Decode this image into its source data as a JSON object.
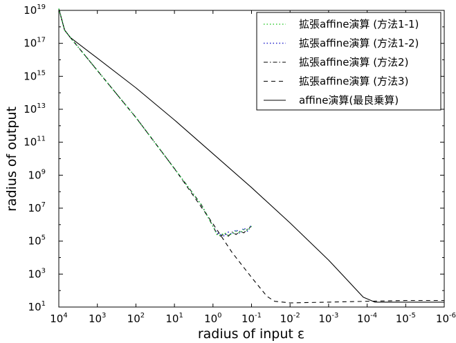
{
  "chart_data": {
    "type": "line",
    "title": "",
    "xlabel": "radius of input ε",
    "ylabel": "radius of output",
    "x_scale": "log",
    "y_scale": "log",
    "x_reversed": true,
    "grid": false,
    "legend_position": "top-right",
    "xlim": [
      10000,
      1e-06
    ],
    "ylim": [
      10,
      10000000000000000000
    ],
    "x_ticks": [
      {
        "base": "10",
        "exp": "4"
      },
      {
        "base": "10",
        "exp": "3"
      },
      {
        "base": "10",
        "exp": "2"
      },
      {
        "base": "10",
        "exp": "1"
      },
      {
        "base": "10",
        "exp": "0"
      },
      {
        "base": "10",
        "exp": "-1"
      },
      {
        "base": "10",
        "exp": "-2"
      },
      {
        "base": "10",
        "exp": "-3"
      },
      {
        "base": "10",
        "exp": "-4"
      },
      {
        "base": "10",
        "exp": "-5"
      },
      {
        "base": "10",
        "exp": "-6"
      }
    ],
    "y_ticks": [
      {
        "base": "10",
        "exp": "1"
      },
      {
        "base": "10",
        "exp": "3"
      },
      {
        "base": "10",
        "exp": "5"
      },
      {
        "base": "10",
        "exp": "7"
      },
      {
        "base": "10",
        "exp": "9"
      },
      {
        "base": "10",
        "exp": "11"
      },
      {
        "base": "10",
        "exp": "13"
      },
      {
        "base": "10",
        "exp": "15"
      },
      {
        "base": "10",
        "exp": "17"
      },
      {
        "base": "10",
        "exp": "19"
      }
    ],
    "series": [
      {
        "name": "拡張affine演算 (方法1-1)",
        "color": "#33cc33",
        "style": "dotted",
        "log10_points": [
          [
            4.0,
            19.1
          ],
          [
            3.85,
            17.8
          ],
          [
            3.7,
            17.35
          ],
          [
            3.0,
            15.35
          ],
          [
            2.0,
            12.5
          ],
          [
            1.0,
            9.4
          ],
          [
            0.3,
            7.2
          ],
          [
            0.0,
            5.9
          ],
          [
            -0.1,
            5.4
          ],
          [
            -0.2,
            5.35
          ],
          [
            -0.3,
            5.5
          ],
          [
            -0.4,
            5.35
          ],
          [
            -0.5,
            5.45
          ],
          [
            -0.6,
            5.6
          ],
          [
            -0.7,
            5.5
          ],
          [
            -0.8,
            5.7
          ],
          [
            -0.9,
            5.65
          ],
          [
            -1.0,
            5.9
          ]
        ]
      },
      {
        "name": "拡張affine演算 (方法1-2)",
        "color": "#2222cc",
        "style": "dotted",
        "log10_points": [
          [
            4.0,
            19.1
          ],
          [
            3.85,
            17.8
          ],
          [
            3.7,
            17.35
          ],
          [
            3.0,
            15.35
          ],
          [
            2.0,
            12.5
          ],
          [
            1.0,
            9.4
          ],
          [
            0.3,
            7.2
          ],
          [
            0.0,
            5.9
          ],
          [
            -0.1,
            5.5
          ],
          [
            -0.2,
            5.4
          ],
          [
            -0.3,
            5.3
          ],
          [
            -0.4,
            5.55
          ],
          [
            -0.5,
            5.4
          ],
          [
            -0.6,
            5.7
          ],
          [
            -0.7,
            5.45
          ],
          [
            -0.8,
            5.8
          ],
          [
            -0.9,
            5.6
          ],
          [
            -1.0,
            6.0
          ]
        ]
      },
      {
        "name": "拡張affine演算 (方法2)",
        "color": "#000000",
        "style": "dashdot",
        "log10_points": [
          [
            4.0,
            19.1
          ],
          [
            3.85,
            17.8
          ],
          [
            3.7,
            17.35
          ],
          [
            3.0,
            15.35
          ],
          [
            2.0,
            12.5
          ],
          [
            1.0,
            9.4
          ],
          [
            0.3,
            7.2
          ],
          [
            0.0,
            5.9
          ],
          [
            -0.1,
            5.45
          ],
          [
            -0.2,
            5.3
          ],
          [
            -0.3,
            5.45
          ],
          [
            -0.4,
            5.3
          ],
          [
            -0.5,
            5.55
          ],
          [
            -0.6,
            5.4
          ],
          [
            -0.7,
            5.6
          ],
          [
            -0.8,
            5.5
          ],
          [
            -0.9,
            5.75
          ],
          [
            -1.0,
            5.9
          ]
        ]
      },
      {
        "name": "拡張affine演算 (方法3)",
        "color": "#000000",
        "style": "dashed",
        "log10_points": [
          [
            4.0,
            19.1
          ],
          [
            3.85,
            17.8
          ],
          [
            3.7,
            17.35
          ],
          [
            3.0,
            15.35
          ],
          [
            2.0,
            12.5
          ],
          [
            1.0,
            9.4
          ],
          [
            0.0,
            6.05
          ],
          [
            -0.5,
            4.3
          ],
          [
            -1.0,
            2.8
          ],
          [
            -1.4,
            1.65
          ],
          [
            -1.6,
            1.35
          ],
          [
            -2.0,
            1.25
          ],
          [
            -3.0,
            1.3
          ],
          [
            -4.0,
            1.35
          ],
          [
            -5.0,
            1.4
          ],
          [
            -6.0,
            1.4
          ]
        ]
      },
      {
        "name": "affine演算(最良乗算)",
        "color": "#000000",
        "style": "solid",
        "log10_points": [
          [
            4.0,
            19.1
          ],
          [
            3.85,
            17.8
          ],
          [
            3.7,
            17.35
          ],
          [
            3.0,
            16.1
          ],
          [
            2.0,
            14.3
          ],
          [
            1.0,
            12.35
          ],
          [
            0.0,
            10.3
          ],
          [
            -1.0,
            8.25
          ],
          [
            -2.0,
            6.1
          ],
          [
            -3.0,
            3.85
          ],
          [
            -3.9,
            1.6
          ],
          [
            -4.2,
            1.3
          ],
          [
            -5.0,
            1.3
          ],
          [
            -6.0,
            1.3
          ]
        ]
      }
    ]
  }
}
